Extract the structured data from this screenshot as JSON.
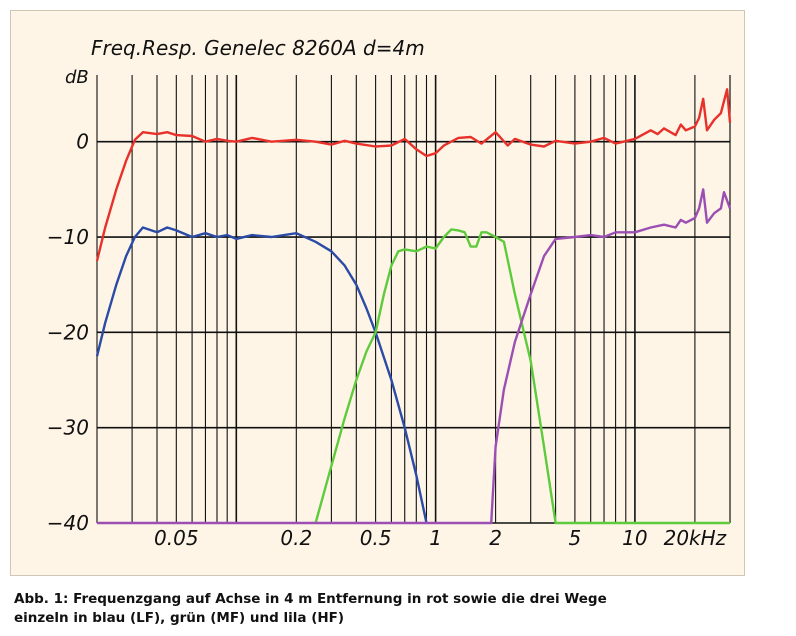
{
  "chart_data": {
    "type": "line",
    "title": "Freq.Resp. Genelec 8260A d=4m",
    "ylabel": "dB",
    "xscale": "log",
    "xlim": [
      0.02,
      30
    ],
    "ylim": [
      -40,
      7
    ],
    "grid": true,
    "yticks": [
      {
        "value": 0,
        "label": "0"
      },
      {
        "value": -10,
        "label": "−10"
      },
      {
        "value": -20,
        "label": "−20"
      },
      {
        "value": -30,
        "label": "−30"
      },
      {
        "value": -40,
        "label": "−40"
      }
    ],
    "xticks": [
      {
        "value": 0.05,
        "label": "0.05"
      },
      {
        "value": 0.2,
        "label": "0.2"
      },
      {
        "value": 0.5,
        "label": "0.5"
      },
      {
        "value": 1,
        "label": "1"
      },
      {
        "value": 2,
        "label": "2"
      },
      {
        "value": 5,
        "label": "5"
      },
      {
        "value": 10,
        "label": "10"
      },
      {
        "value": 20,
        "label": "20kHz"
      }
    ],
    "series": [
      {
        "color": "#e8312a",
        "points": [
          [
            0.02,
            -12.5
          ],
          [
            0.022,
            -9
          ],
          [
            0.025,
            -5
          ],
          [
            0.028,
            -2
          ],
          [
            0.031,
            0.2
          ],
          [
            0.034,
            1
          ],
          [
            0.04,
            0.8
          ],
          [
            0.045,
            1
          ],
          [
            0.05,
            0.7
          ],
          [
            0.06,
            0.6
          ],
          [
            0.07,
            0
          ],
          [
            0.08,
            0.3
          ],
          [
            0.09,
            0.1
          ],
          [
            0.1,
            0
          ],
          [
            0.12,
            0.4
          ],
          [
            0.15,
            0
          ],
          [
            0.2,
            0.2
          ],
          [
            0.25,
            0
          ],
          [
            0.3,
            -0.3
          ],
          [
            0.35,
            0.1
          ],
          [
            0.4,
            -0.2
          ],
          [
            0.5,
            -0.5
          ],
          [
            0.6,
            -0.4
          ],
          [
            0.7,
            0.3
          ],
          [
            0.8,
            -0.8
          ],
          [
            0.9,
            -1.5
          ],
          [
            1,
            -1.2
          ],
          [
            1.1,
            -0.4
          ],
          [
            1.3,
            0.4
          ],
          [
            1.5,
            0.5
          ],
          [
            1.7,
            -0.2
          ],
          [
            2,
            1
          ],
          [
            2.3,
            -0.4
          ],
          [
            2.5,
            0.3
          ],
          [
            3,
            -0.3
          ],
          [
            3.5,
            -0.5
          ],
          [
            4,
            0.1
          ],
          [
            5,
            -0.2
          ],
          [
            6,
            0
          ],
          [
            7,
            0.4
          ],
          [
            8,
            -0.2
          ],
          [
            10,
            0.3
          ],
          [
            12,
            1.2
          ],
          [
            13,
            0.8
          ],
          [
            14,
            1.4
          ],
          [
            16,
            0.7
          ],
          [
            17,
            1.8
          ],
          [
            18,
            1.2
          ],
          [
            20,
            1.6
          ],
          [
            21,
            2.5
          ],
          [
            22,
            4.5
          ],
          [
            23,
            1.2
          ],
          [
            25,
            2.3
          ],
          [
            27,
            3
          ],
          [
            29,
            5.5
          ],
          [
            30,
            2
          ]
        ]
      },
      {
        "color": "#2b4ba6",
        "points": [
          [
            0.02,
            -22.5
          ],
          [
            0.022,
            -19
          ],
          [
            0.025,
            -15
          ],
          [
            0.028,
            -12
          ],
          [
            0.031,
            -10
          ],
          [
            0.034,
            -9
          ],
          [
            0.04,
            -9.5
          ],
          [
            0.045,
            -9
          ],
          [
            0.05,
            -9.3
          ],
          [
            0.06,
            -10
          ],
          [
            0.07,
            -9.6
          ],
          [
            0.08,
            -10
          ],
          [
            0.09,
            -9.8
          ],
          [
            0.1,
            -10.2
          ],
          [
            0.12,
            -9.8
          ],
          [
            0.15,
            -10
          ],
          [
            0.2,
            -9.6
          ],
          [
            0.25,
            -10.5
          ],
          [
            0.3,
            -11.5
          ],
          [
            0.35,
            -13
          ],
          [
            0.4,
            -15
          ],
          [
            0.45,
            -17.5
          ],
          [
            0.5,
            -20
          ],
          [
            0.6,
            -25
          ],
          [
            0.7,
            -30
          ],
          [
            0.8,
            -35
          ],
          [
            0.9,
            -40
          ]
        ]
      },
      {
        "color": "#5ecb3c",
        "points": [
          [
            0.25,
            -40
          ],
          [
            0.3,
            -34
          ],
          [
            0.35,
            -29
          ],
          [
            0.4,
            -25
          ],
          [
            0.45,
            -22
          ],
          [
            0.5,
            -20
          ],
          [
            0.55,
            -16
          ],
          [
            0.6,
            -13
          ],
          [
            0.65,
            -11.5
          ],
          [
            0.7,
            -11.3
          ],
          [
            0.8,
            -11.5
          ],
          [
            0.9,
            -11
          ],
          [
            1,
            -11.2
          ],
          [
            1.1,
            -10
          ],
          [
            1.2,
            -9.2
          ],
          [
            1.3,
            -9.3
          ],
          [
            1.4,
            -9.5
          ],
          [
            1.5,
            -11
          ],
          [
            1.6,
            -11
          ],
          [
            1.7,
            -9.5
          ],
          [
            1.8,
            -9.5
          ],
          [
            2,
            -10
          ],
          [
            2.2,
            -10.5
          ],
          [
            2.5,
            -16
          ],
          [
            3,
            -23
          ],
          [
            3.5,
            -32
          ],
          [
            4,
            -40
          ],
          [
            30,
            -40
          ]
        ]
      },
      {
        "color": "#9c4fb3",
        "points": [
          [
            0.02,
            -40
          ],
          [
            1.9,
            -40
          ],
          [
            2,
            -32
          ],
          [
            2.2,
            -26
          ],
          [
            2.5,
            -21
          ],
          [
            3,
            -16
          ],
          [
            3.5,
            -12
          ],
          [
            4,
            -10.2
          ],
          [
            5,
            -10
          ],
          [
            6,
            -9.8
          ],
          [
            7,
            -10
          ],
          [
            8,
            -9.5
          ],
          [
            10,
            -9.5
          ],
          [
            12,
            -9
          ],
          [
            14,
            -8.7
          ],
          [
            16,
            -9
          ],
          [
            17,
            -8.2
          ],
          [
            18,
            -8.5
          ],
          [
            20,
            -8
          ],
          [
            21,
            -7
          ],
          [
            22,
            -5
          ],
          [
            23,
            -8.5
          ],
          [
            25,
            -7.5
          ],
          [
            27,
            -7
          ],
          [
            28,
            -5.3
          ],
          [
            30,
            -7
          ]
        ]
      }
    ]
  },
  "caption": {
    "line1": "Abb. 1: Frequenzgang auf Achse in 4 m Entfernung in rot sowie die drei Wege",
    "line2": "einzeln in blau (LF), grün (MF) und lila (HF)"
  }
}
